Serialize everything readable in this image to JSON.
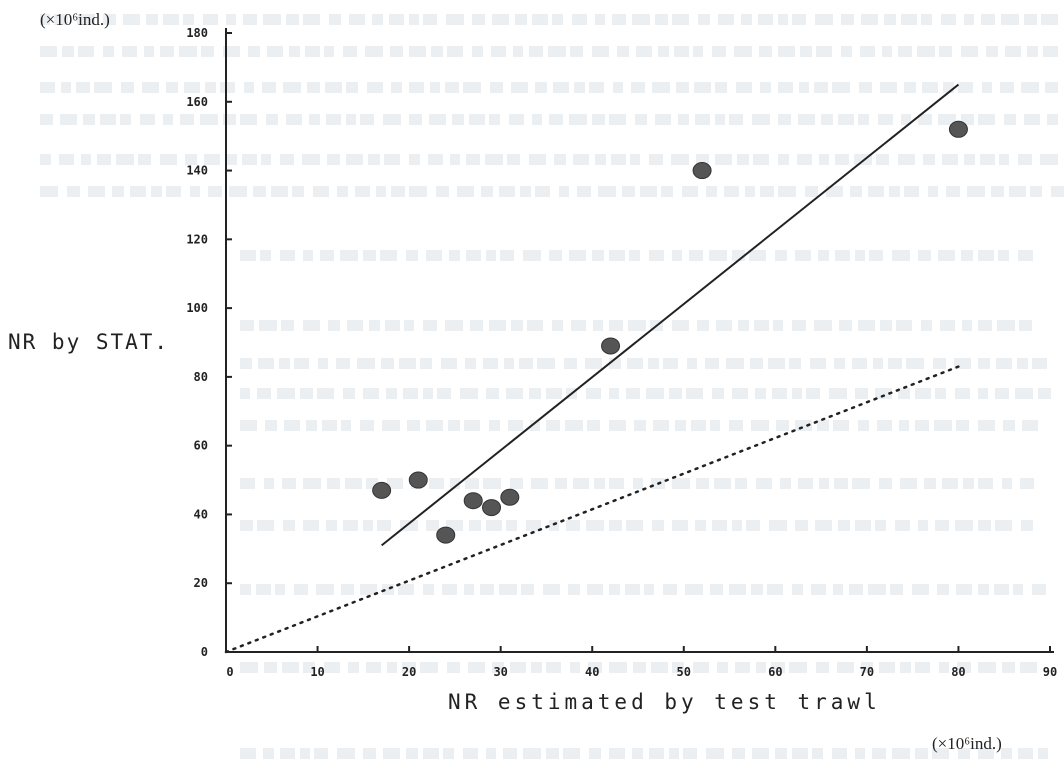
{
  "chart_data": {
    "type": "scatter",
    "xlabel": "NR estimated by test trawl",
    "ylabel": "NR by STAT.",
    "x_unit": "(×10⁶ind.)",
    "y_unit": "(×10⁶ind.)",
    "xlim": [
      0,
      90
    ],
    "ylim": [
      0,
      180
    ],
    "x_ticks": [
      "0",
      "10",
      "20",
      "30",
      "40",
      "50",
      "60",
      "70",
      "80",
      "90"
    ],
    "y_ticks": [
      "0",
      "20",
      "40",
      "60",
      "80",
      "100",
      "120",
      "140",
      "160",
      "180"
    ],
    "points": [
      {
        "x": 17,
        "y": 47
      },
      {
        "x": 21,
        "y": 50
      },
      {
        "x": 24,
        "y": 34
      },
      {
        "x": 27,
        "y": 44
      },
      {
        "x": 29,
        "y": 42
      },
      {
        "x": 31,
        "y": 45
      },
      {
        "x": 42,
        "y": 89
      },
      {
        "x": 52,
        "y": 140
      },
      {
        "x": 80,
        "y": 152
      }
    ],
    "regression_line": {
      "x": [
        17,
        80
      ],
      "y": [
        31,
        165
      ],
      "style": "solid"
    },
    "reference_line": {
      "x": [
        0,
        80
      ],
      "y": [
        0,
        83
      ],
      "style": "dotted"
    },
    "grid": false,
    "colors": {
      "points": "#555555",
      "lines": "#222222"
    }
  }
}
